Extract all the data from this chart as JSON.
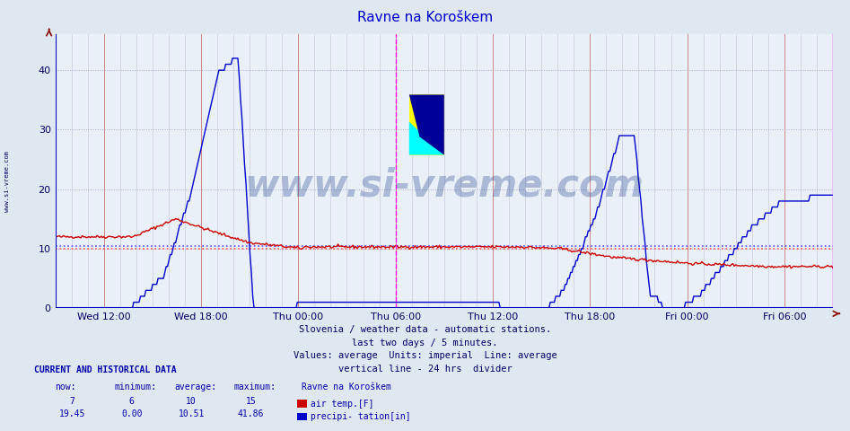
{
  "title": "Ravne na Koroškem",
  "title_color": "#0000cc",
  "bg_color": "#dfe8f0",
  "plot_bg_color": "#eaf0f8",
  "grid_h_color": "#aaaacc",
  "grid_h_style": ":",
  "grid_v_major_color": "#cc8888",
  "grid_v_minor_color": "#ccccdd",
  "border_color": "#0000bb",
  "figsize": [
    9.47,
    4.8
  ],
  "dpi": 100,
  "ylim": [
    0,
    46
  ],
  "yticks": [
    0,
    10,
    20,
    30,
    40
  ],
  "xlabel_color": "#000066",
  "ylabel_color": "#000066",
  "air_temp_color": "#cc0000",
  "precip_color": "#0000cc",
  "avg_line_color_red": "#ff5555",
  "avg_line_color_blue": "#5555ff",
  "avg_air_temp": 10,
  "avg_precip": 10.51,
  "divider_color": "#ff00ff",
  "right_edge_color": "#ff00ff",
  "subtitle_lines": [
    "Slovenia / weather data - automatic stations.",
    "last two days / 5 minutes.",
    "Values: average  Units: imperial  Line: average",
    "vertical line - 24 hrs  divider"
  ],
  "subtitle_color": "#000066",
  "watermark_text": "www.si-vreme.com",
  "watermark_color": "#1a3a8c",
  "watermark_alpha": 0.3,
  "watermark_fontsize": 30,
  "left_label": "www.si-vreme.com",
  "left_label_color": "#000066",
  "x_tick_labels": [
    "Wed 12:00",
    "Wed 18:00",
    "Thu 00:00",
    "Thu 06:00",
    "Thu 12:00",
    "Thu 18:00",
    "Fri 00:00",
    "Fri 06:00"
  ],
  "num_points": 576,
  "info_text_color": "#0000aa",
  "legend_label_air": "air temp.[F]",
  "legend_label_precip": "precipi- tation[in]",
  "stats_air": {
    "now": 7,
    "min": 6,
    "avg": 10,
    "max": 15
  },
  "stats_precip": {
    "now": 19.45,
    "min": 0.0,
    "avg": 10.51,
    "max": 41.86
  },
  "logo_colors": {
    "yellow": "#ffff00",
    "cyan": "#00ffff",
    "blue": "#000099"
  }
}
